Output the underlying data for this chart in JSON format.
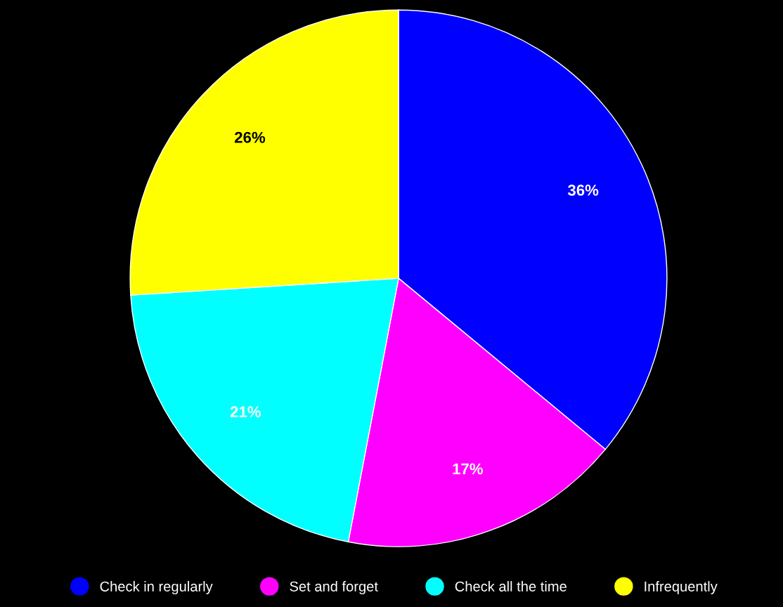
{
  "chart_data": {
    "type": "pie",
    "categories": [
      "Check in regularly",
      "Set and forget",
      "Check all the time",
      "Infrequently"
    ],
    "values": [
      36,
      17,
      21,
      26
    ],
    "colors": [
      "#0000ff",
      "#ff00ff",
      "#00ffff",
      "#ffff00"
    ],
    "value_labels": [
      "36%",
      "17%",
      "21%",
      "26%"
    ],
    "legend": "bottom"
  }
}
